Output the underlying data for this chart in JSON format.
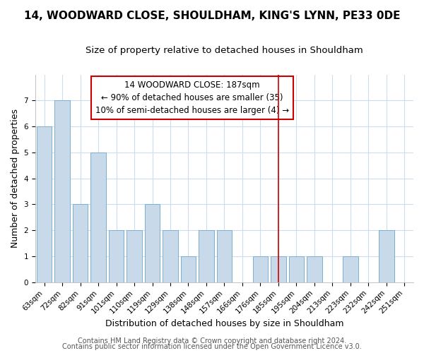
{
  "title": "14, WOODWARD CLOSE, SHOULDHAM, KING'S LYNN, PE33 0DE",
  "subtitle": "Size of property relative to detached houses in Shouldham",
  "xlabel": "Distribution of detached houses by size in Shouldham",
  "ylabel": "Number of detached properties",
  "bins": [
    "63sqm",
    "72sqm",
    "82sqm",
    "91sqm",
    "101sqm",
    "110sqm",
    "119sqm",
    "129sqm",
    "138sqm",
    "148sqm",
    "157sqm",
    "166sqm",
    "176sqm",
    "185sqm",
    "195sqm",
    "204sqm",
    "213sqm",
    "223sqm",
    "232sqm",
    "242sqm",
    "251sqm"
  ],
  "bar_heights": [
    6,
    7,
    3,
    5,
    2,
    2,
    3,
    2,
    1,
    2,
    2,
    0,
    1,
    1,
    1,
    1,
    0,
    1,
    0,
    2,
    0
  ],
  "bar_color": "#c8daea",
  "bar_edgecolor": "#7bafd4",
  "marker_line_color": "#cc0000",
  "marker_box_edgecolor": "#cc0000",
  "annotation_line1": "14 WOODWARD CLOSE: 187sqm",
  "annotation_line2": "← 90% of detached houses are smaller (35)",
  "annotation_line3": "10% of semi-detached houses are larger (4) →",
  "marker_bin_index": 13,
  "ylim": [
    0,
    8
  ],
  "yticks": [
    0,
    1,
    2,
    3,
    4,
    5,
    6,
    7
  ],
  "bg_color": "#ffffff",
  "plot_bg_color": "#ffffff",
  "grid_color": "#ccddee",
  "title_fontsize": 11,
  "subtitle_fontsize": 9.5,
  "axis_label_fontsize": 9,
  "tick_fontsize": 7.5,
  "annotation_fontsize": 8.5,
  "footer_fontsize": 7,
  "footer1": "Contains HM Land Registry data © Crown copyright and database right 2024.",
  "footer2": "Contains public sector information licensed under the Open Government Licence v3.0."
}
